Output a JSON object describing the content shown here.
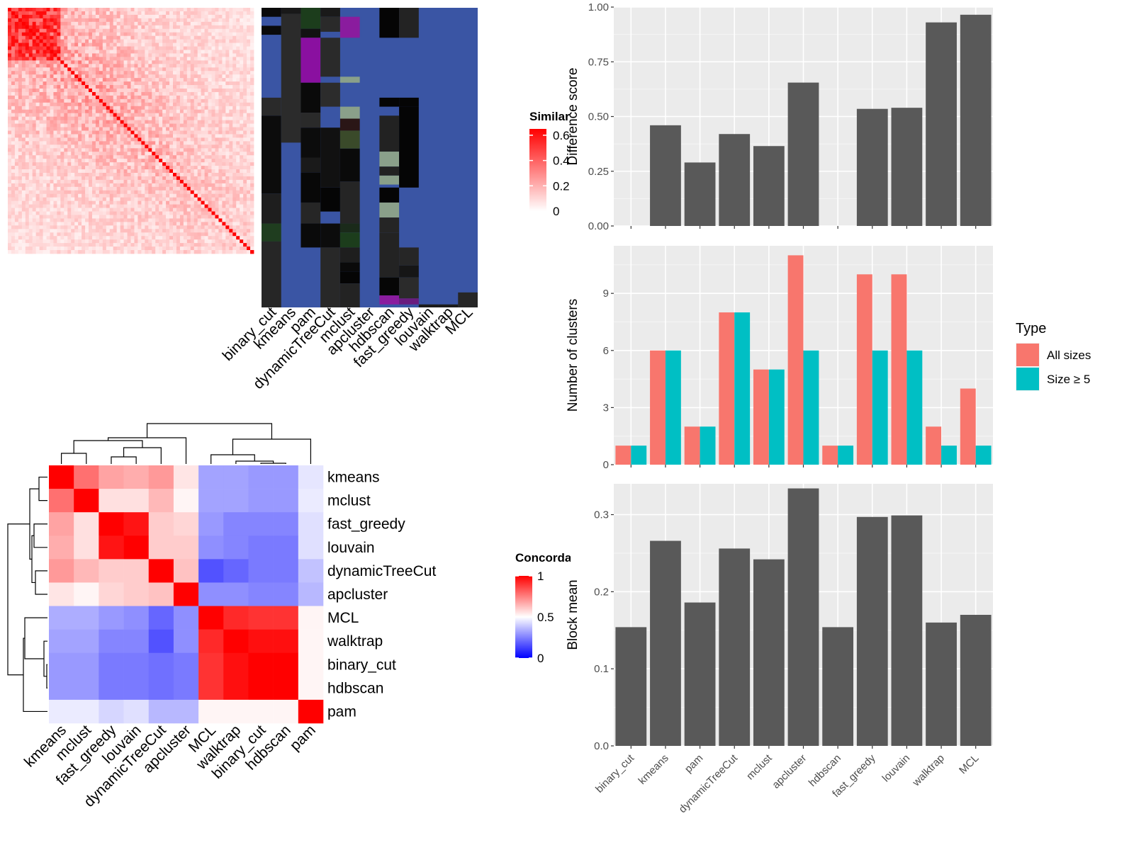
{
  "chart_data": [
    {
      "type": "heatmap",
      "panel": "similarity-matrix",
      "title": "",
      "n": 70,
      "legend": {
        "title": "Similarity",
        "range": [
          0,
          0.65
        ],
        "ticks": [
          "0",
          "0.2",
          "0.4",
          "0.6"
        ]
      }
    },
    {
      "type": "heatmap",
      "panel": "cluster-assignments",
      "methods": [
        "binary_cut",
        "kmeans",
        "pam",
        "dynamicTreeCut",
        "mclust",
        "apcluster",
        "hdbscan",
        "fast_greedy",
        "louvain",
        "walktrap",
        "MCL"
      ]
    },
    {
      "type": "heatmap",
      "panel": "concordance",
      "rows": [
        "kmeans",
        "mclust",
        "fast_greedy",
        "louvain",
        "dynamicTreeCut",
        "apcluster",
        "MCL",
        "walktrap",
        "binary_cut",
        "hdbscan",
        "pam"
      ],
      "cols": [
        "kmeans",
        "mclust",
        "fast_greedy",
        "louvain",
        "dynamicTreeCut",
        "apcluster",
        "MCL",
        "walktrap",
        "binary_cut",
        "hdbscan",
        "pam"
      ],
      "values": [
        [
          1.0,
          0.78,
          0.68,
          0.66,
          0.7,
          0.55,
          0.32,
          0.32,
          0.3,
          0.3,
          0.45
        ],
        [
          0.78,
          1.0,
          0.56,
          0.56,
          0.64,
          0.52,
          0.32,
          0.32,
          0.3,
          0.3,
          0.46
        ],
        [
          0.68,
          0.56,
          1.0,
          0.96,
          0.6,
          0.58,
          0.3,
          0.26,
          0.26,
          0.26,
          0.44
        ],
        [
          0.66,
          0.56,
          0.96,
          1.0,
          0.6,
          0.6,
          0.28,
          0.26,
          0.24,
          0.24,
          0.44
        ],
        [
          0.7,
          0.64,
          0.6,
          0.6,
          1.0,
          0.62,
          0.16,
          0.2,
          0.24,
          0.24,
          0.38
        ],
        [
          0.55,
          0.52,
          0.58,
          0.6,
          0.62,
          1.0,
          0.28,
          0.28,
          0.26,
          0.26,
          0.36
        ],
        [
          0.34,
          0.34,
          0.3,
          0.28,
          0.2,
          0.28,
          1.0,
          0.92,
          0.9,
          0.9,
          0.52
        ],
        [
          0.32,
          0.32,
          0.26,
          0.26,
          0.16,
          0.28,
          0.92,
          1.0,
          0.97,
          0.97,
          0.52
        ],
        [
          0.3,
          0.3,
          0.24,
          0.24,
          0.22,
          0.24,
          0.9,
          0.97,
          1.0,
          1.0,
          0.52
        ],
        [
          0.3,
          0.3,
          0.24,
          0.24,
          0.22,
          0.24,
          0.9,
          0.97,
          1.0,
          1.0,
          0.52
        ],
        [
          0.46,
          0.46,
          0.42,
          0.44,
          0.36,
          0.36,
          0.52,
          0.52,
          0.52,
          0.52,
          1.0
        ]
      ],
      "legend": {
        "title": "Concordance",
        "range": [
          0,
          1
        ],
        "ticks": [
          "0",
          "0.5",
          "1"
        ]
      }
    },
    {
      "type": "bar",
      "panel": "difference-score",
      "categories": [
        "binary_cut",
        "kmeans",
        "pam",
        "dynamicTreeCut",
        "mclust",
        "apcluster",
        "hdbscan",
        "fast_greedy",
        "louvain",
        "walktrap",
        "MCL"
      ],
      "values": [
        null,
        0.46,
        0.29,
        0.42,
        0.365,
        0.655,
        null,
        0.535,
        0.54,
        0.93,
        0.965
      ],
      "xlabel": "",
      "ylabel": "Difference score",
      "ylim": [
        0,
        1.0
      ],
      "yticks": [
        "0.00",
        "0.25",
        "0.50",
        "0.75",
        "1.00"
      ],
      "color": "#595959"
    },
    {
      "type": "bar",
      "panel": "number-of-clusters",
      "categories": [
        "binary_cut",
        "kmeans",
        "pam",
        "dynamicTreeCut",
        "mclust",
        "apcluster",
        "hdbscan",
        "fast_greedy",
        "louvain",
        "walktrap",
        "MCL"
      ],
      "series": [
        {
          "name": "All sizes",
          "color": "#F8766D",
          "values": [
            1,
            6,
            2,
            8,
            5,
            11,
            1,
            10,
            10,
            2,
            4
          ]
        },
        {
          "name": "Size ≥ 5",
          "color": "#00BFC4",
          "values": [
            1,
            6,
            2,
            8,
            5,
            6,
            1,
            6,
            6,
            1,
            1
          ]
        }
      ],
      "xlabel": "",
      "ylabel": "Number of clusters",
      "ylim": [
        0,
        11.5
      ],
      "yticks": [
        "0",
        "3",
        "6",
        "9"
      ],
      "legend": {
        "title": "Type",
        "position": "right"
      }
    },
    {
      "type": "bar",
      "panel": "block-mean",
      "categories": [
        "binary_cut",
        "kmeans",
        "pam",
        "dynamicTreeCut",
        "mclust",
        "apcluster",
        "hdbscan",
        "fast_greedy",
        "louvain",
        "walktrap",
        "MCL"
      ],
      "values": [
        0.154,
        0.266,
        0.186,
        0.256,
        0.242,
        0.334,
        0.154,
        0.297,
        0.299,
        0.16,
        0.17
      ],
      "xlabel": "",
      "ylabel": "Block mean",
      "ylim": [
        0,
        0.34
      ],
      "yticks": [
        "0.0",
        "0.1",
        "0.2",
        "0.3"
      ],
      "color": "#595959"
    }
  ]
}
